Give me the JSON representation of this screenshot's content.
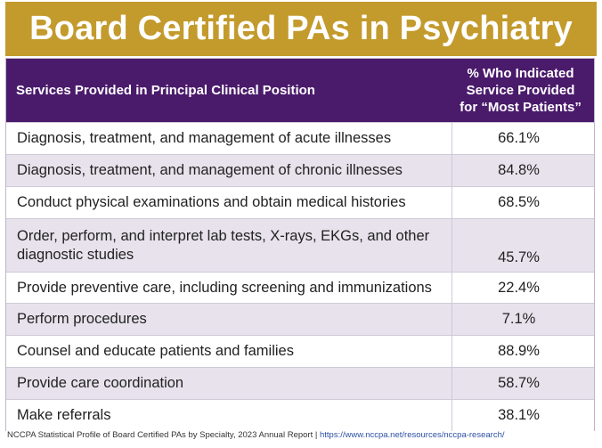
{
  "title": "Board Certified PAs in Psychiatry",
  "table": {
    "header_service": "Services Provided in Principal Clinical Position",
    "header_percent_lines": [
      "% Who Indicated",
      "Service Provided",
      "for “Most Patients”"
    ],
    "rows": [
      {
        "service": "Diagnosis, treatment, and management of acute illnesses",
        "percent": "66.1%"
      },
      {
        "service": "Diagnosis, treatment, and management of chronic illnesses",
        "percent": "84.8%"
      },
      {
        "service": "Conduct physical examinations and obtain medical histories",
        "percent": "68.5%"
      },
      {
        "service": "Order, perform, and interpret lab tests, X-rays, EKGs, and other diagnostic studies",
        "percent": "45.7%"
      },
      {
        "service": "Provide preventive care, including screening and immunizations",
        "percent": "22.4%"
      },
      {
        "service": "Perform procedures",
        "percent": "7.1%"
      },
      {
        "service": "Counsel and educate patients and families",
        "percent": "88.9%"
      },
      {
        "service": "Provide care coordination",
        "percent": "58.7%"
      },
      {
        "service": "Make referrals",
        "percent": "38.1%"
      }
    ]
  },
  "footer": {
    "source": "NCCPA Statistical Profile of Board Certified PAs by Specialty, 2023 Annual Report | ",
    "url": "https://www.nccpa.net/resources/nccpa-research/"
  }
}
